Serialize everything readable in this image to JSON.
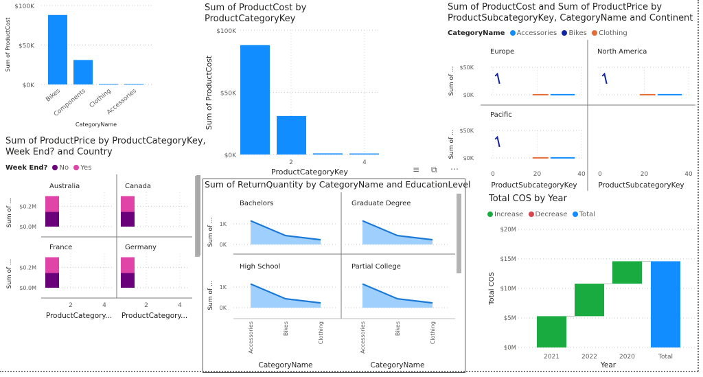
{
  "charts": {
    "category_cost": {
      "title": "",
      "ylabel": "Sum of ProductCost",
      "xlabel": "CategoryName",
      "yticks": [
        "$100K",
        "$50K",
        "$0K"
      ],
      "chart_data_ref": 0
    },
    "key_cost": {
      "title_line1": "Sum of ProductCost by",
      "title_line2": "ProductCategoryKey",
      "ylabel": "Sum of ProductCost",
      "xlabel": "ProductCategoryKey",
      "yticks": [
        "$100K",
        "$50K",
        "$0K"
      ],
      "xticks": [
        "2",
        "4"
      ]
    },
    "continent": {
      "title_line1": "Sum of ProductCost and Sum of ProductPrice by",
      "title_line2": "ProductSubcategoryKey, CategoryName and Continent",
      "legend_title": "CategoryName",
      "legend": [
        {
          "label": "Accessories",
          "color": "#118DFF"
        },
        {
          "label": "Bikes",
          "color": "#12239E"
        },
        {
          "label": "Clothing",
          "color": "#E66C37"
        }
      ],
      "panels": [
        "Europe",
        "North America",
        "Pacific"
      ],
      "ylabel": "Sum of ...",
      "yticks": [
        "$50K",
        "$0K"
      ],
      "xticks": [
        "0",
        "20",
        "40"
      ],
      "xlabel": "ProductSubcategoryKey"
    },
    "country": {
      "title_line1": "Sum of ProductPrice by ProductCategoryKey,",
      "title_line2": "Week End? and Country",
      "legend_title": "Week End?",
      "legend": [
        {
          "label": "No",
          "color": "#6B007B"
        },
        {
          "label": "Yes",
          "color": "#E044A7"
        }
      ],
      "panels": [
        "Australia",
        "Canada",
        "France",
        "Germany"
      ],
      "ylabel": "Sum of ...",
      "yticks": [
        "$0.2M",
        "$0.0M"
      ],
      "xticks": [
        "2",
        "4"
      ],
      "xlabel": "ProductCategory..."
    },
    "returns": {
      "title": "Sum of ReturnQuantity by CategoryName and EducationLevel",
      "panels": [
        "Bachelors",
        "Graduate Degree",
        "High School",
        "Partial College"
      ],
      "ylabel": "Sum of ...",
      "yticks": [
        "1K",
        "0K"
      ],
      "xticks": [
        "Accessories",
        "Bikes",
        "Clothing"
      ],
      "xlabel": "CategoryName",
      "icons": {
        "filter": "filter-icon",
        "focus": "focus-mode-icon",
        "more": "more-options-icon"
      }
    },
    "waterfall": {
      "title": "Total COS by Year",
      "legend": [
        {
          "label": "Increase",
          "color": "#1AAB40"
        },
        {
          "label": "Decrease",
          "color": "#D64550"
        },
        {
          "label": "Total",
          "color": "#118DFF"
        }
      ],
      "ylabel": "Total COS",
      "xlabel": "Year",
      "yticks": [
        "$20M",
        "$15M",
        "$10M",
        "$5M",
        "$0M"
      ]
    }
  },
  "chart_data": [
    {
      "type": "bar",
      "title": "",
      "categories": [
        "Bikes",
        "Components",
        "Clothing",
        "Accessories"
      ],
      "values": [
        88000,
        31000,
        800,
        600
      ],
      "xlabel": "CategoryName",
      "ylabel": "Sum of ProductCost",
      "ylim": [
        0,
        100000
      ],
      "color": "#118DFF"
    },
    {
      "type": "bar",
      "title": "Sum of ProductCost by ProductCategoryKey",
      "categories": [
        "1",
        "2",
        "3",
        "4"
      ],
      "values": [
        88000,
        31000,
        900,
        500
      ],
      "xlabel": "ProductCategoryKey",
      "ylabel": "Sum of ProductCost",
      "ylim": [
        0,
        100000
      ],
      "color": "#118DFF"
    },
    {
      "type": "line",
      "title": "Sum of ProductCost and Sum of ProductPrice by ProductSubcategoryKey, CategoryName and Continent",
      "xlabel": "ProductSubcategoryKey",
      "xlim": [
        0,
        40
      ],
      "ylim": [
        0,
        50000
      ],
      "panels": [
        {
          "name": "Europe",
          "series": [
            {
              "name": "Bikes",
              "x": [
                1,
                2,
                3
              ],
              "y": [
                34000,
                38000,
                20000
              ]
            },
            {
              "name": "Clothing",
              "x": [
                18,
                25
              ],
              "y": [
                200,
                200
              ]
            },
            {
              "name": "Accessories",
              "x": [
                26,
                37
              ],
              "y": [
                200,
                200
              ]
            }
          ]
        },
        {
          "name": "North America",
          "series": [
            {
              "name": "Bikes",
              "x": [
                1,
                2,
                3
              ],
              "y": [
                34000,
                38000,
                20000
              ]
            },
            {
              "name": "Clothing",
              "x": [
                18,
                25
              ],
              "y": [
                200,
                200
              ]
            },
            {
              "name": "Accessories",
              "x": [
                26,
                37
              ],
              "y": [
                200,
                200
              ]
            }
          ]
        },
        {
          "name": "Pacific",
          "series": [
            {
              "name": "Bikes",
              "x": [
                1,
                2,
                3
              ],
              "y": [
                34000,
                38000,
                20000
              ]
            },
            {
              "name": "Clothing",
              "x": [
                18,
                25
              ],
              "y": [
                200,
                200
              ]
            },
            {
              "name": "Accessories",
              "x": [
                26,
                37
              ],
              "y": [
                200,
                200
              ]
            }
          ]
        }
      ]
    },
    {
      "type": "bar",
      "title": "Sum of ProductPrice by ProductCategoryKey, Week End? and Country",
      "categories": [
        "1",
        "2",
        "3",
        "4"
      ],
      "series_names": [
        "No",
        "Yes"
      ],
      "ylim": [
        0,
        0.33
      ],
      "panels": [
        {
          "name": "Australia",
          "No": [
            0.145,
            0,
            0.002,
            0.001
          ],
          "Yes": [
            0.155,
            0,
            0.001,
            0.001
          ]
        },
        {
          "name": "Canada",
          "No": [
            0.145,
            0,
            0.002,
            0.001
          ],
          "Yes": [
            0.155,
            0,
            0.001,
            0.001
          ]
        },
        {
          "name": "France",
          "No": [
            0.145,
            0,
            0.002,
            0.001
          ],
          "Yes": [
            0.155,
            0,
            0.001,
            0.001
          ]
        },
        {
          "name": "Germany",
          "No": [
            0.145,
            0,
            0.002,
            0.001
          ],
          "Yes": [
            0.155,
            0,
            0.001,
            0.001
          ]
        }
      ]
    },
    {
      "type": "area",
      "title": "Sum of ReturnQuantity by CategoryName and EducationLevel",
      "categories": [
        "Accessories",
        "Bikes",
        "Clothing"
      ],
      "ylim": [
        0,
        1300
      ],
      "panels": [
        {
          "name": "Bachelors",
          "values": [
            1150,
            430,
            230
          ]
        },
        {
          "name": "Graduate Degree",
          "values": [
            1150,
            430,
            230
          ]
        },
        {
          "name": "High School",
          "values": [
            1150,
            430,
            230
          ]
        },
        {
          "name": "Partial College",
          "values": [
            1150,
            430,
            230
          ]
        }
      ]
    },
    {
      "type": "bar",
      "subtype": "waterfall",
      "title": "Total COS by Year",
      "categories": [
        "2021",
        "2022",
        "2020",
        "Total"
      ],
      "deltas": [
        5300000,
        5500000,
        3800000
      ],
      "total": 14600000,
      "xlabel": "Year",
      "ylabel": "Total COS",
      "ylim": [
        0,
        20000000
      ]
    }
  ]
}
